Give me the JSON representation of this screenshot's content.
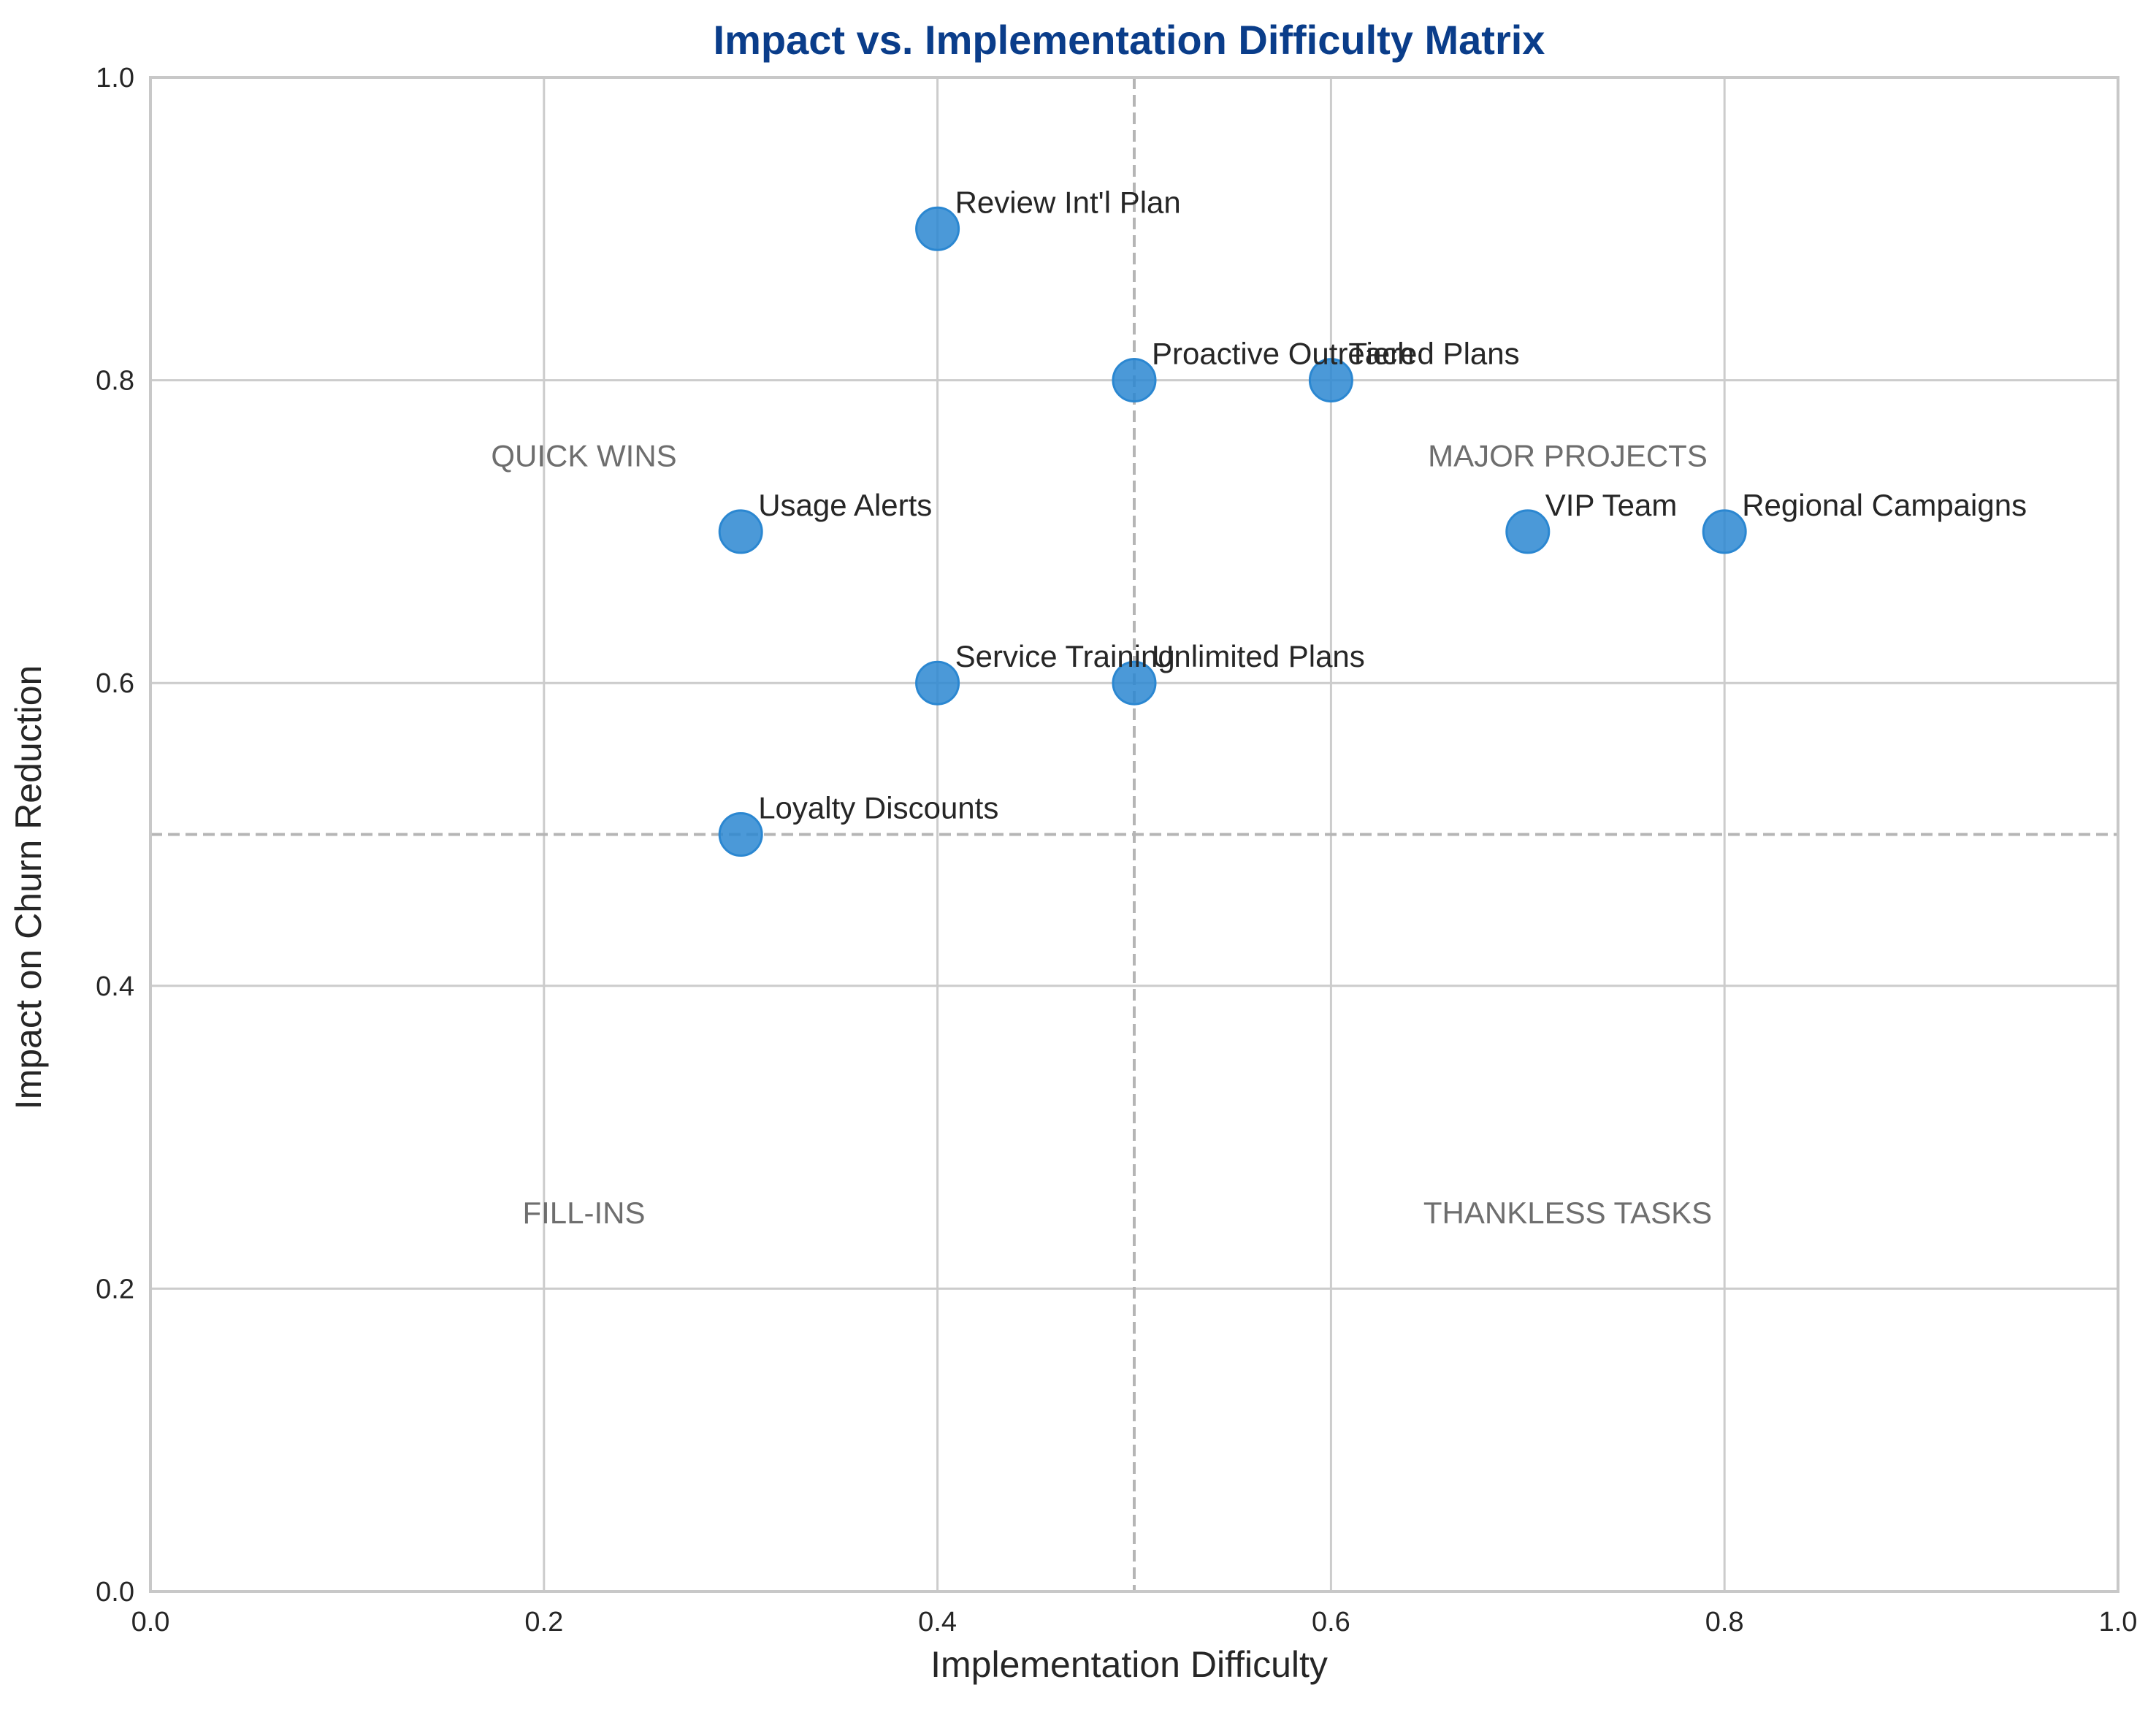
{
  "chart_data": {
    "type": "scatter",
    "title": "Impact vs. Implementation Difficulty Matrix",
    "xlabel": "Implementation Difficulty",
    "ylabel": "Impact on Churn Reduction",
    "xlim": [
      0,
      1
    ],
    "ylim": [
      0,
      1
    ],
    "xticks": [
      "0.0",
      "0.2",
      "0.4",
      "0.6",
      "0.8",
      "1.0"
    ],
    "yticks": [
      "0.0",
      "0.2",
      "0.4",
      "0.6",
      "0.8",
      "1.0"
    ],
    "grid": true,
    "reference_lines": {
      "x": 0.5,
      "y": 0.5,
      "style": "dashed"
    },
    "point_color": "#2b87d1",
    "title_color": "#0a3d8a",
    "quadrant_labels": [
      {
        "text": "QUICK WINS",
        "x": 0.25,
        "y": 0.75
      },
      {
        "text": "MAJOR PROJECTS",
        "x": 0.75,
        "y": 0.75
      },
      {
        "text": "FILL-INS",
        "x": 0.25,
        "y": 0.25
      },
      {
        "text": "THANKLESS TASKS",
        "x": 0.75,
        "y": 0.25
      }
    ],
    "points": [
      {
        "label": "Review Int'l Plan",
        "x": 0.4,
        "y": 0.9
      },
      {
        "label": "Proactive Outreach",
        "x": 0.5,
        "y": 0.8
      },
      {
        "label": "Tiered Plans",
        "x": 0.6,
        "y": 0.8
      },
      {
        "label": "Usage Alerts",
        "x": 0.3,
        "y": 0.7
      },
      {
        "label": "VIP Team",
        "x": 0.7,
        "y": 0.7
      },
      {
        "label": "Regional Campaigns",
        "x": 0.8,
        "y": 0.7
      },
      {
        "label": "Service Training",
        "x": 0.4,
        "y": 0.6
      },
      {
        "label": "Unlimited Plans",
        "x": 0.5,
        "y": 0.6
      },
      {
        "label": "Loyalty Discounts",
        "x": 0.3,
        "y": 0.5
      }
    ]
  }
}
